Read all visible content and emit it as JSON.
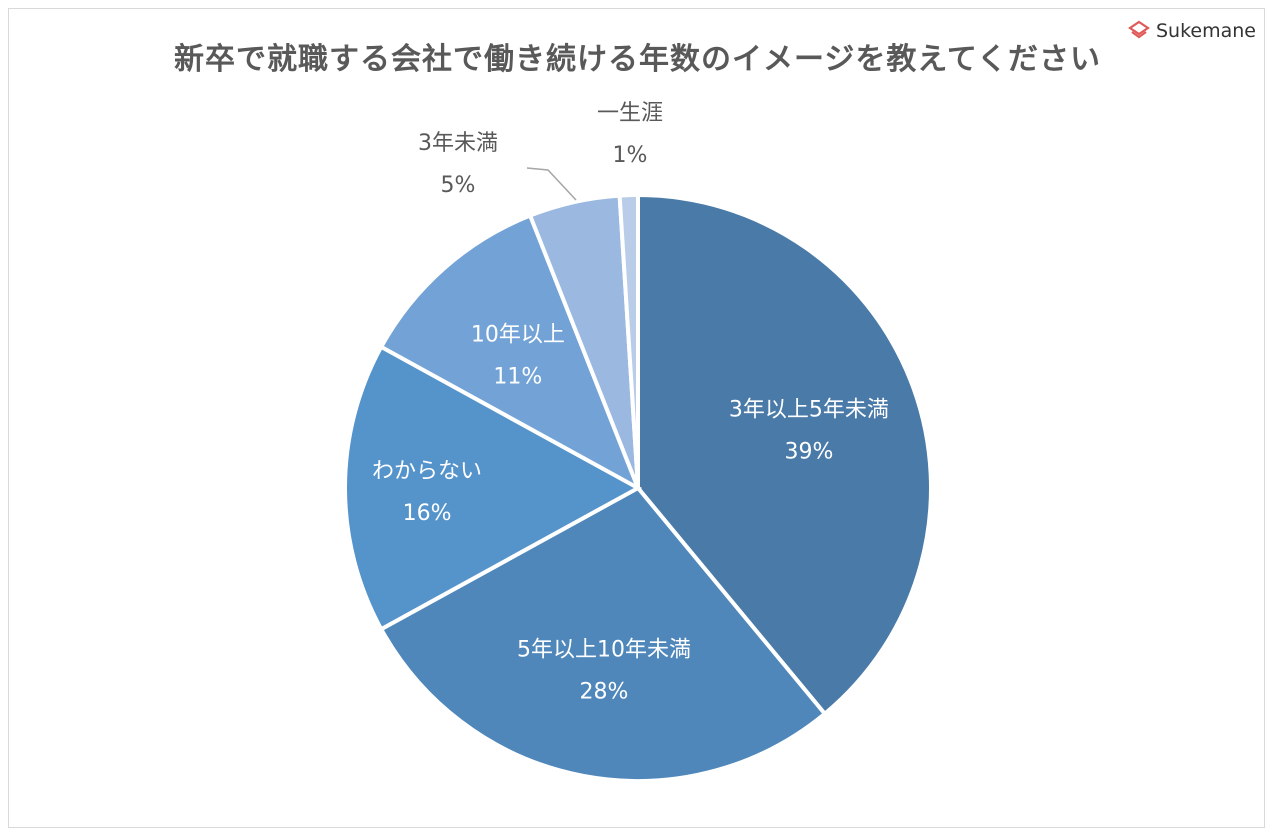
{
  "title": "新卒で就職する会社で働き続ける年数のイメージを教えてください",
  "logo": {
    "text": "Sukemane",
    "icon": "sukemane-logo-icon",
    "color": "#e05a5a"
  },
  "chart_data": {
    "type": "pie",
    "title": "新卒で就職する会社で働き続ける年数のイメージを教えてください",
    "start_angle_deg": 0,
    "direction": "clockwise",
    "slices": [
      {
        "label": "3年以上5年未満",
        "value": 39,
        "value_label": "39%",
        "color": "#4a7aa8",
        "label_color": "#ffffff"
      },
      {
        "label": "5年以上10年未満",
        "value": 28,
        "value_label": "28%",
        "color": "#4f87bb",
        "label_color": "#ffffff"
      },
      {
        "label": "わからない",
        "value": 16,
        "value_label": "16%",
        "color": "#5593cb",
        "label_color": "#ffffff"
      },
      {
        "label": "10年以上",
        "value": 11,
        "value_label": "11%",
        "color": "#73a3d6",
        "label_color": "#ffffff"
      },
      {
        "label": "3年未満",
        "value": 5,
        "value_label": "5%",
        "color": "#9ab8e0",
        "label_color": "#595959"
      },
      {
        "label": "一生涯",
        "value": 1,
        "value_label": "1%",
        "color": "#b9cde8",
        "label_color": "#595959"
      }
    ]
  }
}
